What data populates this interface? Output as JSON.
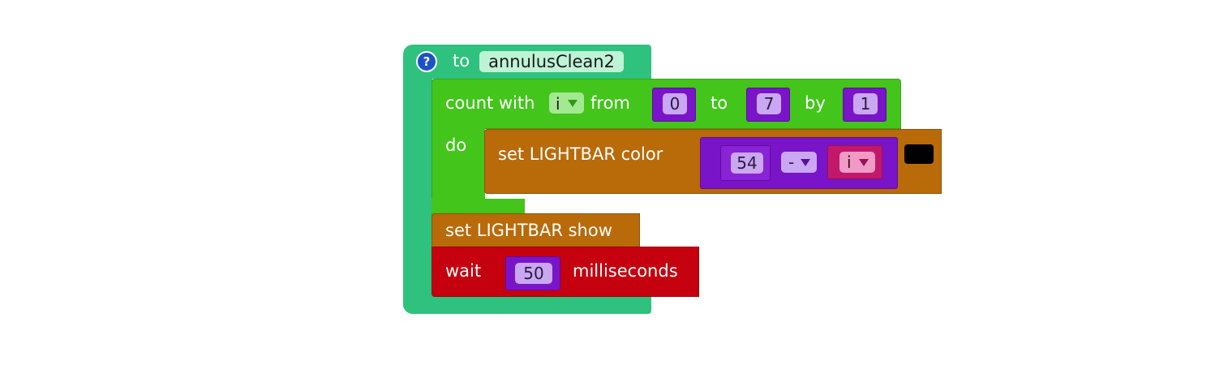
{
  "procedure": {
    "help_icon": "?",
    "to_label": "to",
    "name": "annulusClean2"
  },
  "loop": {
    "count_label": "count with",
    "var_name": "i",
    "from_label": "from",
    "from_value": "0",
    "to_label": "to",
    "to_value": "7",
    "by_label": "by",
    "by_value": "1",
    "do_label": "do",
    "dropdown_icon": "dropdown-arrow-icon"
  },
  "set_color": {
    "label": "set LIGHTBAR color",
    "left_value": "54",
    "operator": "-",
    "right_var": "i",
    "color_swatch": "#000000"
  },
  "show_block": {
    "label": "set LIGHTBAR show"
  },
  "wait_block": {
    "wait_label": "wait",
    "value": "50",
    "unit_label": "milliseconds"
  },
  "colors": {
    "procedure": "#2ec27e",
    "loop": "#43c51b",
    "lightbar": "#b96a09",
    "wait": "#c5010f",
    "math": "#7a14c9",
    "variable": "#c2186b"
  }
}
